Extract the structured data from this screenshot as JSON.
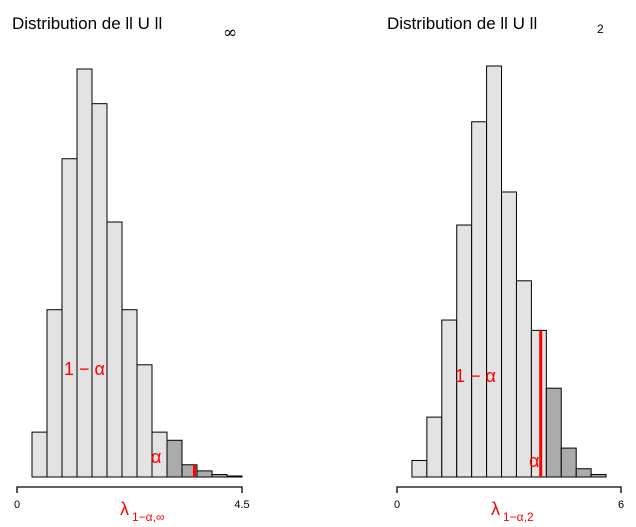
{
  "colors": {
    "bar_light": "#e3e3e3",
    "bar_tail": "#ababab",
    "stroke": "#000000",
    "accent": "#ff0000"
  },
  "chart_data": [
    {
      "type": "bar",
      "title": {
        "text": "Distribution de ll U ll",
        "subscript": "∞"
      },
      "x_ticks": [
        "0",
        "4.5"
      ],
      "xlim": [
        0,
        4.5
      ],
      "bin_width": 0.3,
      "x_start": 0.3,
      "values": [
        2.2,
        8.2,
        15.6,
        20.0,
        18.3,
        12.5,
        8.2,
        5.5,
        2.2,
        1.8,
        0.6,
        0.3,
        0.12,
        0.05
      ],
      "quantile": 3.55,
      "tail_from_bin": 9,
      "labels": {
        "body": "1 − α",
        "tail": "α",
        "quantile": {
          "base": "λ",
          "subscript": "1−α,∞"
        }
      }
    },
    {
      "type": "bar",
      "title": {
        "text": "Distribution de ll U ll",
        "subscript": "2"
      },
      "x_ticks": [
        "0",
        "6"
      ],
      "xlim": [
        0,
        6
      ],
      "bin_width": 0.4,
      "x_start": 0.4,
      "values": [
        0.8,
        2.9,
        7.6,
        12.2,
        17.2,
        19.9,
        13.8,
        9.5,
        7.1,
        4.3,
        1.4,
        0.4,
        0.12
      ],
      "quantile": 3.85,
      "tail_from_bin": 9,
      "labels": {
        "body": "1 − α",
        "tail": "α",
        "quantile": {
          "base": "λ",
          "subscript": "1−α,2"
        }
      }
    }
  ]
}
